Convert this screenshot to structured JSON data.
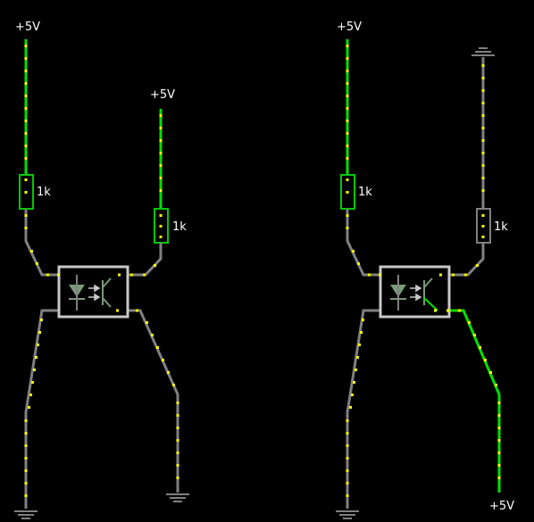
{
  "colors": {
    "background": "#000000",
    "wire_idle": "#808080",
    "wire_live": "#00e000",
    "current_dot": "#ffff00",
    "component_outline": "#c8c8c8",
    "led": "#7a9a7a",
    "label": "#ffffff"
  },
  "circuit_left": {
    "supply_main": "+5V",
    "supply_collector": "+5V",
    "resistor_input": "1k",
    "resistor_collector": "1k"
  },
  "circuit_right": {
    "supply_main": "+5V",
    "supply_emitter": "+5V",
    "resistor_input": "1k",
    "resistor_collector": "1k"
  }
}
